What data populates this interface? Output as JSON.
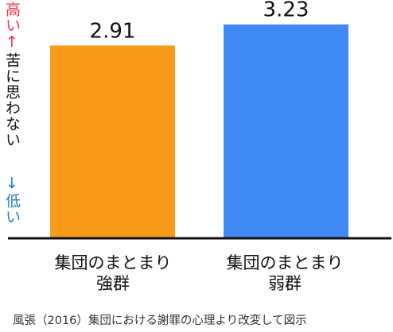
{
  "chart_data": {
    "type": "bar",
    "categories": [
      "集団のまとまり\n強群",
      "集団のまとまり\n弱群"
    ],
    "category_lines": [
      [
        "集団のまとまり",
        "強群"
      ],
      [
        "集団のまとまり",
        "弱群"
      ]
    ],
    "values": [
      2.91,
      3.23
    ],
    "value_labels": [
      "2.91",
      "3.23"
    ],
    "colors": [
      "#f89a1c",
      "#4189f4"
    ],
    "ylim": [
      0,
      3.6
    ],
    "ylabel": {
      "high": "高い↑",
      "mid": "苦に思わない",
      "low": "↓低い"
    },
    "ylabel_colors": {
      "high": "#e8334a",
      "mid": "#111111",
      "low": "#1f7fc4"
    },
    "grid": false,
    "source": "風張（2016）集団における謝罪の心理より改変して図示"
  }
}
